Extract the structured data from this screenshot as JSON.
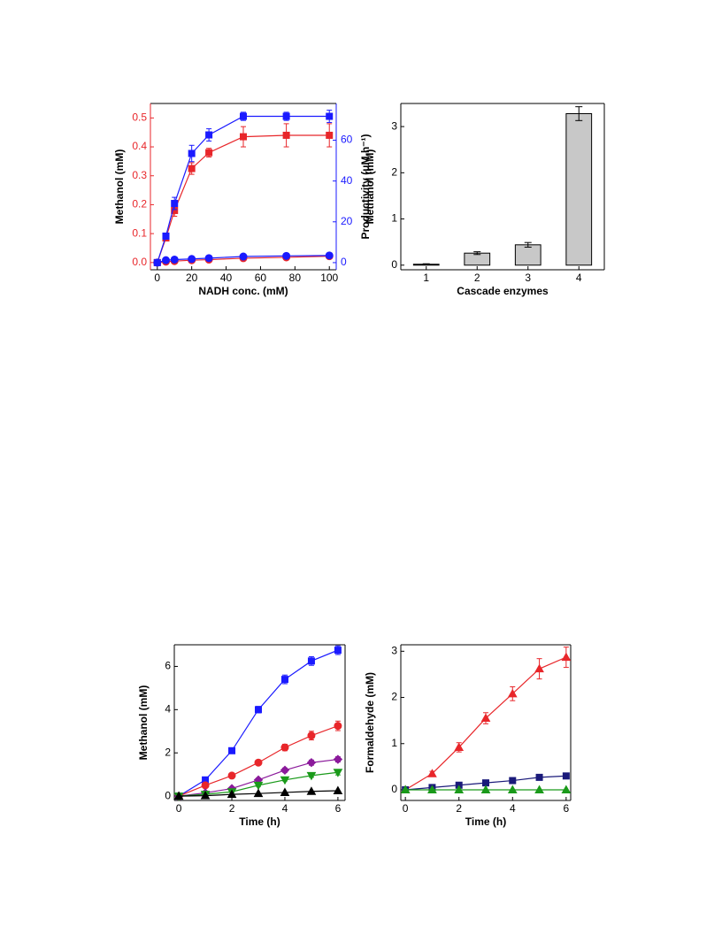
{
  "chart_data": [
    {
      "type": "line",
      "xlabel": "NADH conc. (mM)",
      "ylabel": "Methanol (mM)",
      "y2label": "Productivity (μM h⁻¹)",
      "y_axis_color": "#e8262a",
      "y2_axis_color": "#1a1aff",
      "x": [
        0,
        5,
        10,
        20,
        30,
        50,
        75,
        100
      ],
      "xlim": [
        -4,
        104
      ],
      "xticks": [
        0,
        20,
        40,
        60,
        80,
        100
      ],
      "ylim": [
        -0.025,
        0.55
      ],
      "yticks": [
        {
          "value": 0,
          "label": "0.0"
        },
        0.1,
        0.2,
        0.3,
        0.4,
        0.5
      ],
      "y2lim": [
        -3.5,
        78
      ],
      "y2ticks": [
        0,
        20,
        40,
        60
      ],
      "series": [
        {
          "color": "#e8262a",
          "marker": "square",
          "values": [
            0,
            0.085,
            0.18,
            0.325,
            0.38,
            0.435,
            0.44,
            0.44
          ],
          "errors": [
            0.005,
            0.01,
            0.02,
            0.02,
            0.015,
            0.035,
            0.04,
            0.04
          ]
        },
        {
          "color": "#1a1aff",
          "marker": "square",
          "axis": "y2",
          "values": [
            0,
            13,
            29,
            53.5,
            62.6,
            71.7,
            71.7,
            71.7
          ],
          "errors": [
            0.5,
            1.5,
            3,
            4,
            3,
            2,
            2,
            3
          ]
        },
        {
          "color": "#e8262a",
          "marker": "circle",
          "values": [
            0,
            0.003,
            0.005,
            0.008,
            0.01,
            0.015,
            0.018,
            0.022
          ]
        },
        {
          "color": "#1a1aff",
          "marker": "circle",
          "axis": "y2",
          "values": [
            0,
            1.2,
            1.5,
            1.8,
            2.2,
            3,
            3.3,
            3.5
          ]
        }
      ]
    },
    {
      "type": "bar",
      "xlabel": "Cascade enzymes",
      "ylabel": "Methanol (mM)",
      "categories": [
        "1",
        "2",
        "3",
        "4"
      ],
      "values": [
        0.02,
        0.26,
        0.44,
        3.28
      ],
      "errors": [
        0.01,
        0.03,
        0.05,
        0.15
      ],
      "color": "#c8c8c8",
      "ylim": [
        -0.1,
        3.5
      ],
      "yticks": [
        0,
        1,
        2,
        3
      ]
    },
    {
      "type": "line",
      "xlabel": "Time (h)",
      "ylabel": "Methanol (mM)",
      "x": [
        0,
        1,
        2,
        3,
        4,
        5,
        6
      ],
      "xlim": [
        -0.17,
        6.27
      ],
      "xticks": [
        0,
        2,
        4,
        6
      ],
      "ylim": [
        -0.2,
        7
      ],
      "yticks": [
        0,
        2,
        4,
        6
      ],
      "series": [
        {
          "color": "#1a1aff",
          "marker": "square",
          "values": [
            0,
            0.75,
            2.1,
            4.0,
            5.4,
            6.25,
            6.75
          ],
          "errors": [
            0.02,
            0.08,
            0.1,
            0.15,
            0.2,
            0.2,
            0.2
          ]
        },
        {
          "color": "#e8262a",
          "marker": "circle",
          "values": [
            0,
            0.5,
            0.95,
            1.55,
            2.25,
            2.8,
            3.25
          ],
          "errors": [
            0.02,
            0.05,
            0.05,
            0.08,
            0.15,
            0.2,
            0.22
          ]
        },
        {
          "color": "#8b1a9b",
          "marker": "diamond",
          "values": [
            0,
            0.15,
            0.35,
            0.75,
            1.2,
            1.55,
            1.7
          ],
          "errors": [
            0.02,
            0.03,
            0.05,
            0.08,
            0.1,
            0.12,
            0.12
          ]
        },
        {
          "color": "#1a9a1a",
          "marker": "triangle-down",
          "values": [
            0,
            0.08,
            0.2,
            0.5,
            0.75,
            0.95,
            1.1
          ],
          "errors": [
            0.02,
            0.02,
            0.03,
            0.05,
            0.05,
            0.08,
            0.12
          ]
        },
        {
          "color": "#000000",
          "marker": "triangle",
          "values": [
            0,
            0.02,
            0.08,
            0.12,
            0.17,
            0.22,
            0.25
          ]
        }
      ]
    },
    {
      "type": "line",
      "xlabel": "Time (h)",
      "ylabel": "Formaldehyde (mM)",
      "x": [
        0,
        1,
        2,
        3,
        4,
        5,
        6
      ],
      "xlim": [
        -0.17,
        6.17
      ],
      "xticks": [
        0,
        2,
        4,
        6
      ],
      "ylim": [
        -0.23,
        3.14
      ],
      "yticks": [
        0,
        1,
        2,
        3
      ],
      "series": [
        {
          "color": "#e8262a",
          "marker": "triangle",
          "values": [
            0,
            0.35,
            0.92,
            1.55,
            2.08,
            2.62,
            2.87
          ],
          "errors": [
            0.02,
            0.05,
            0.1,
            0.12,
            0.15,
            0.22,
            0.22
          ]
        },
        {
          "color": "#1a1a7a",
          "marker": "square",
          "values": [
            0,
            0.05,
            0.1,
            0.15,
            0.2,
            0.27,
            0.3
          ]
        },
        {
          "color": "#1a9a1a",
          "marker": "triangle",
          "values": [
            0,
            0,
            0,
            0,
            0,
            0,
            0
          ]
        }
      ]
    }
  ]
}
